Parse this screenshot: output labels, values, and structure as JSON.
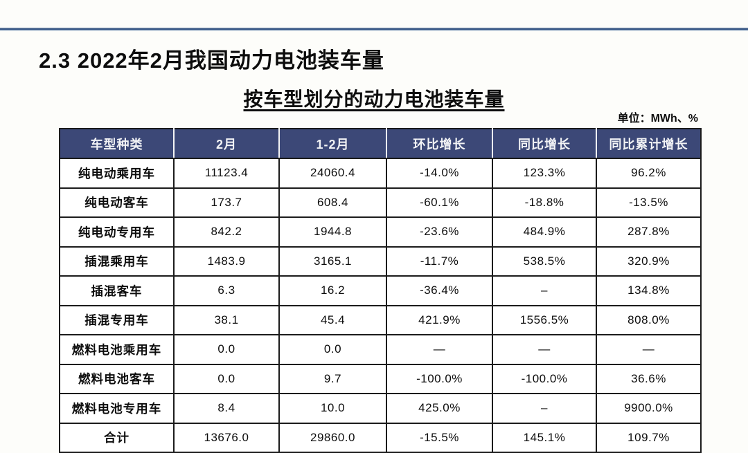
{
  "page": {
    "title": "2.3 2022年2月我国动力电池装车量",
    "subtitle": "按车型划分的动力电池装车量",
    "unit_label": "单位：MWh、%"
  },
  "colors": {
    "header_background": "#3c4877",
    "header_text": "#f2f3f5",
    "divider_line": "#2e4a78",
    "table_border": "#1b1b1b",
    "page_background": "#fdfdfa"
  },
  "chart_data": {
    "type": "table",
    "title": "按车型划分的动力电池装车量",
    "unit": "MWh、%",
    "headers": [
      "车型种类",
      "2月",
      "1-2月",
      "环比增长",
      "同比增长",
      "同比累计增长"
    ],
    "rows": [
      [
        "纯电动乘用车",
        "11123.4",
        "24060.4",
        "-14.0%",
        "123.3%",
        "96.2%"
      ],
      [
        "纯电动客车",
        "173.7",
        "608.4",
        "-60.1%",
        "-18.8%",
        "-13.5%"
      ],
      [
        "纯电动专用车",
        "842.2",
        "1944.8",
        "-23.6%",
        "484.9%",
        "287.8%"
      ],
      [
        "插混乘用车",
        "1483.9",
        "3165.1",
        "-11.7%",
        "538.5%",
        "320.9%"
      ],
      [
        "插混客车",
        "6.3",
        "16.2",
        "-36.4%",
        "–",
        "134.8%"
      ],
      [
        "插混专用车",
        "38.1",
        "45.4",
        "421.9%",
        "1556.5%",
        "808.0%"
      ],
      [
        "燃料电池乘用车",
        "0.0",
        "0.0",
        "—",
        "—",
        "—"
      ],
      [
        "燃料电池客车",
        "0.0",
        "9.7",
        "-100.0%",
        "-100.0%",
        "36.6%"
      ],
      [
        "燃料电池专用车",
        "8.4",
        "10.0",
        "425.0%",
        "–",
        "9900.0%"
      ],
      [
        "合计",
        "13676.0",
        "29860.0",
        "-15.5%",
        "145.1%",
        "109.7%"
      ]
    ]
  }
}
